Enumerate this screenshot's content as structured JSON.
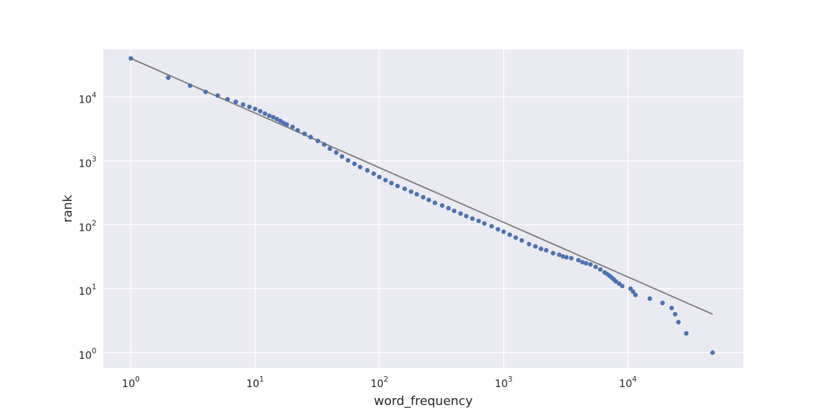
{
  "chart_data": {
    "type": "scatter",
    "title": "",
    "xlabel": "word_frequency",
    "ylabel": "rank",
    "xscale": "log",
    "yscale": "log",
    "xlim": [
      0.6,
      85000
    ],
    "ylim": [
      0.58,
      55000
    ],
    "grid": true,
    "background": "#eaeaf2",
    "grid_color": "#ffffff",
    "point_color": "#4c72b0",
    "fit_line_color": "#808080",
    "x_ticks": [
      {
        "value": 1,
        "base": "10",
        "exp": "0"
      },
      {
        "value": 10,
        "base": "10",
        "exp": "1"
      },
      {
        "value": 100,
        "base": "10",
        "exp": "2"
      },
      {
        "value": 1000,
        "base": "10",
        "exp": "3"
      },
      {
        "value": 10000,
        "base": "10",
        "exp": "4"
      }
    ],
    "y_ticks": [
      {
        "value": 1,
        "base": "10",
        "exp": "0"
      },
      {
        "value": 10,
        "base": "10",
        "exp": "1"
      },
      {
        "value": 100,
        "base": "10",
        "exp": "2"
      },
      {
        "value": 1000,
        "base": "10",
        "exp": "3"
      },
      {
        "value": 10000,
        "base": "10",
        "exp": "4"
      }
    ],
    "fit_line": {
      "x": [
        1,
        48000
      ],
      "y": [
        40000,
        4
      ]
    },
    "points": {
      "x": [
        1,
        2,
        3,
        4,
        5,
        6,
        7,
        8,
        9,
        10,
        11,
        12,
        13,
        14,
        15,
        16,
        17,
        18,
        20,
        22,
        25,
        28,
        32,
        36,
        40,
        45,
        50,
        56,
        63,
        70,
        80,
        90,
        100,
        112,
        125,
        140,
        160,
        180,
        200,
        225,
        250,
        280,
        320,
        360,
        400,
        450,
        500,
        560,
        630,
        700,
        800,
        900,
        1000,
        1120,
        1250,
        1400,
        1600,
        1800,
        2000,
        2200,
        2500,
        2800,
        3000,
        3200,
        3500,
        4000,
        4300,
        4600,
        5000,
        5500,
        6000,
        6500,
        6800,
        7100,
        7400,
        7700,
        8000,
        8500,
        9000,
        10500,
        11000,
        11500,
        15000,
        19000,
        22500,
        24000,
        25500,
        29500,
        48000
      ],
      "y": [
        40000,
        20000,
        15000,
        12000,
        10500,
        9200,
        8400,
        7600,
        7000,
        6500,
        6000,
        5500,
        5100,
        4800,
        4500,
        4200,
        3900,
        3700,
        3400,
        3000,
        2650,
        2350,
        2050,
        1800,
        1550,
        1350,
        1170,
        1020,
        900,
        800,
        710,
        630,
        560,
        500,
        450,
        405,
        365,
        330,
        300,
        270,
        245,
        220,
        200,
        182,
        165,
        150,
        137,
        125,
        115,
        105,
        95,
        85,
        78,
        70,
        63,
        57,
        50,
        46,
        42,
        40,
        36,
        34,
        32,
        31,
        30,
        28,
        26,
        25,
        24,
        22,
        20,
        18,
        17,
        16,
        15,
        14,
        13,
        12,
        11,
        10,
        9,
        8,
        7,
        6,
        5,
        4,
        3,
        2,
        1
      ]
    }
  }
}
